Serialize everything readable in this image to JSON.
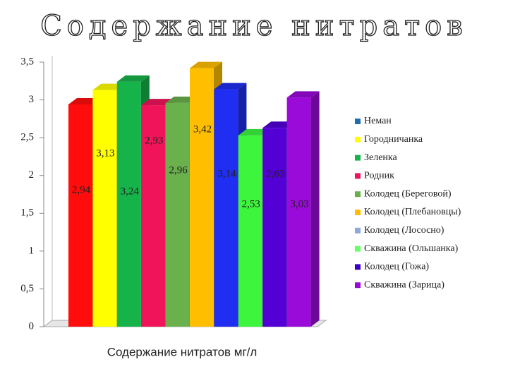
{
  "chart_data": {
    "type": "bar3d",
    "title": "Содержание нитратов",
    "x_label": "Содержание нитратов мг/л",
    "ylim": [
      0,
      3.5
    ],
    "yticks": [
      0,
      {
        "value": 0.5,
        "label": "0,5"
      },
      1,
      {
        "value": 1.5,
        "label": "1,5"
      },
      2,
      {
        "value": 2.5,
        "label": "2,5"
      },
      3,
      {
        "value": 3.5,
        "label": "3,5"
      }
    ],
    "series": [
      {
        "name": "Неман",
        "color": "#ff0d0d",
        "legend_color": "#1f6fb0",
        "values": [
          2.94
        ],
        "value_labels": [
          "2,94"
        ]
      },
      {
        "name": "Городничанка",
        "color": "#ffff00",
        "legend_color": "#ffff00",
        "values": [
          3.13
        ],
        "value_labels": [
          "3,13"
        ]
      },
      {
        "name": "Зеленка",
        "color": "#16b24a",
        "legend_color": "#16b24a",
        "values": [
          3.24
        ],
        "value_labels": [
          "3,24"
        ]
      },
      {
        "name": "Родник",
        "color": "#f0145a",
        "legend_color": "#f0145a",
        "values": [
          2.93
        ],
        "value_labels": [
          "2,93"
        ]
      },
      {
        "name": "Колодец (Береговой)",
        "color": "#6ab04c",
        "legend_color": "#6ab04c",
        "values": [
          2.96
        ],
        "value_labels": [
          "2,96"
        ]
      },
      {
        "name": "Колодец (Плебановцы)",
        "color": "#ffbf00",
        "legend_color": "#ffbf00",
        "values": [
          3.42
        ],
        "value_labels": [
          "3,42"
        ]
      },
      {
        "name": "Колодец (Лососно)",
        "color": "#1f2ef0",
        "legend_color": "#8fa9d8",
        "values": [
          3.14
        ],
        "value_labels": [
          "3,14"
        ]
      },
      {
        "name": "Скважина (Ольшанка)",
        "color": "#3ef53e",
        "legend_color": "#66ff66",
        "values": [
          2.53
        ],
        "value_labels": [
          "2,53"
        ]
      },
      {
        "name": "Колодец (Гожа)",
        "color": "#5200d6",
        "legend_color": "#3a00c8",
        "values": [
          2.63
        ],
        "value_labels": [
          "2,63"
        ]
      },
      {
        "name": "Скважина (Зарица)",
        "color": "#9a0ad9",
        "legend_color": "#9a0ad9",
        "values": [
          3.03
        ],
        "value_labels": [
          "3,03"
        ]
      }
    ]
  }
}
